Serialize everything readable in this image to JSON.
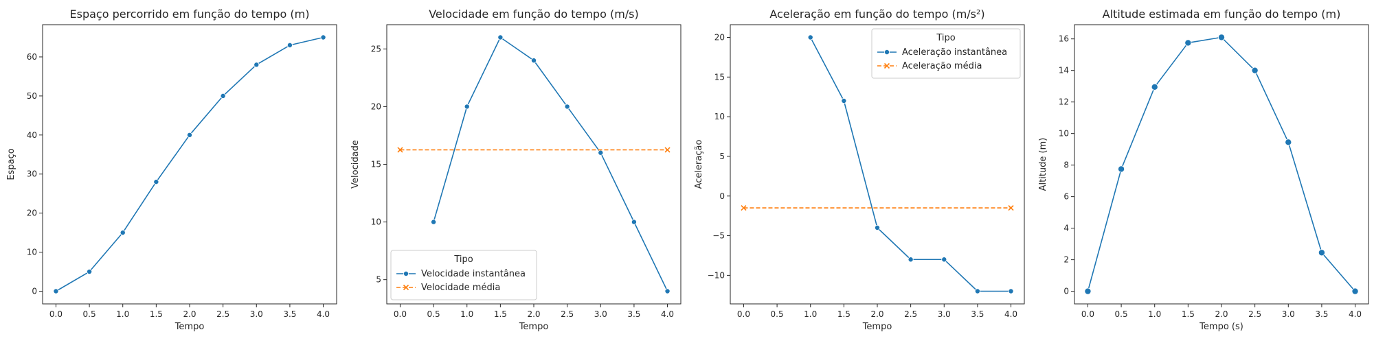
{
  "chart_data": [
    {
      "type": "line",
      "title": "Espaço percorrido em função do tempo (m)",
      "xlabel": "Tempo",
      "ylabel": "Espaço",
      "xlim": [
        -0.2,
        4.2
      ],
      "ylim": [
        -3.25,
        68.25
      ],
      "xticks": [
        0.0,
        0.5,
        1.0,
        1.5,
        2.0,
        2.5,
        3.0,
        3.5,
        4.0
      ],
      "yticks": [
        0,
        10,
        20,
        30,
        40,
        50,
        60
      ],
      "grid": false,
      "series": [
        {
          "x": [
            0.0,
            0.5,
            1.0,
            1.5,
            2.0,
            2.5,
            3.0,
            3.5,
            4.0
          ],
          "y": [
            0,
            5,
            15,
            28,
            40,
            50,
            58,
            63,
            65
          ],
          "color": "#1f77b4",
          "marker": "o",
          "dash": "solid"
        }
      ]
    },
    {
      "type": "line",
      "title": "Velocidade em função do tempo (m/s)",
      "xlabel": "Tempo",
      "ylabel": "Velocidade",
      "xlim": [
        -0.2,
        4.2
      ],
      "ylim": [
        2.9,
        27.1
      ],
      "xticks": [
        0.0,
        0.5,
        1.0,
        1.5,
        2.0,
        2.5,
        3.0,
        3.5,
        4.0
      ],
      "yticks": [
        5,
        10,
        15,
        20,
        25
      ],
      "grid": false,
      "legend": {
        "title": "Tipo",
        "position": "lower-left"
      },
      "series": [
        {
          "name": "Velocidade instantânea",
          "x": [
            0.5,
            1.0,
            1.5,
            2.0,
            2.5,
            3.0,
            3.5,
            4.0
          ],
          "y": [
            10,
            20,
            26,
            24,
            20,
            16,
            10,
            4
          ],
          "color": "#1f77b4",
          "marker": "o",
          "dash": "solid"
        },
        {
          "name": "Velocidade média",
          "x": [
            0.0,
            4.0
          ],
          "y": [
            16.25,
            16.25
          ],
          "color": "#ff7f0e",
          "marker": "x",
          "dash": "dashed"
        }
      ]
    },
    {
      "type": "line",
      "title": "Aceleração em função do tempo (m/s²)",
      "xlabel": "Tempo",
      "ylabel": "Aceleração",
      "xlim": [
        -0.2,
        4.2
      ],
      "ylim": [
        -13.6,
        21.6
      ],
      "xticks": [
        0.0,
        0.5,
        1.0,
        1.5,
        2.0,
        2.5,
        3.0,
        3.5,
        4.0
      ],
      "yticks": [
        -10,
        -5,
        0,
        5,
        10,
        15,
        20
      ],
      "grid": false,
      "legend": {
        "title": "Tipo",
        "position": "upper-right"
      },
      "series": [
        {
          "name": "Aceleração instantânea",
          "x": [
            1.0,
            1.5,
            2.0,
            2.5,
            3.0,
            3.5,
            4.0
          ],
          "y": [
            20,
            12,
            -4,
            -8,
            -8,
            -12,
            -12
          ],
          "color": "#1f77b4",
          "marker": "o",
          "dash": "solid"
        },
        {
          "name": "Aceleração média",
          "x": [
            0.0,
            4.0
          ],
          "y": [
            -1.5,
            -1.5
          ],
          "color": "#ff7f0e",
          "marker": "x",
          "dash": "dashed"
        }
      ]
    },
    {
      "type": "line",
      "title": "Altitude estimada em função do tempo (m)",
      "xlabel": "Tempo (s)",
      "ylabel": "Altitude (m)",
      "xlim": [
        -0.2,
        4.2
      ],
      "ylim": [
        -0.8,
        16.9
      ],
      "xticks": [
        0.0,
        0.5,
        1.0,
        1.5,
        2.0,
        2.5,
        3.0,
        3.5,
        4.0
      ],
      "yticks": [
        0,
        2,
        4,
        6,
        8,
        10,
        12,
        14,
        16
      ],
      "grid": false,
      "series": [
        {
          "x": [
            0.0,
            0.5,
            1.0,
            1.5,
            2.0,
            2.5,
            3.0,
            3.5,
            4.0
          ],
          "y": [
            0,
            7.75,
            12.95,
            15.75,
            16.1,
            14.0,
            9.45,
            2.45,
            0
          ],
          "color": "#1f77b4",
          "marker": "o-large",
          "dash": "solid"
        }
      ]
    }
  ]
}
